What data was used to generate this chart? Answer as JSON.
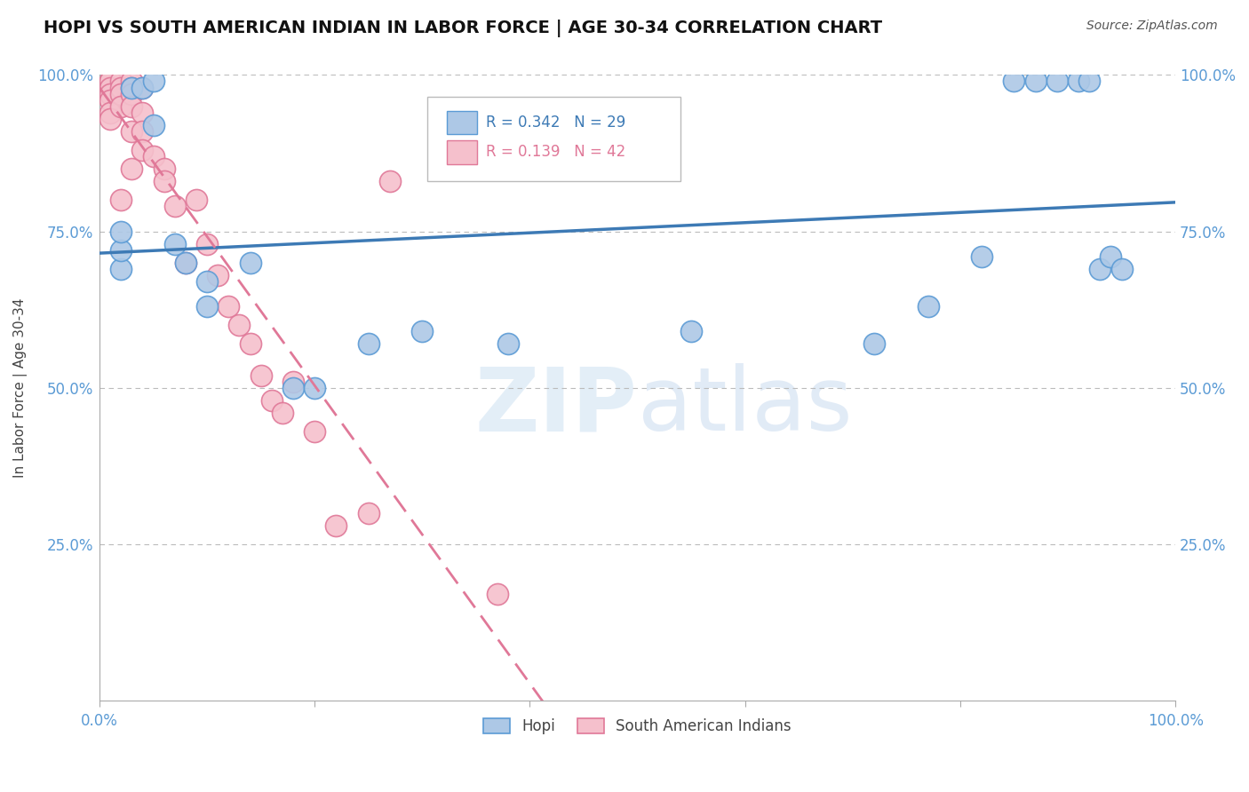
{
  "title": "HOPI VS SOUTH AMERICAN INDIAN IN LABOR FORCE | AGE 30-34 CORRELATION CHART",
  "source": "Source: ZipAtlas.com",
  "ylabel": "In Labor Force | Age 30-34",
  "watermark_top": "ZIP",
  "watermark_bot": "atlas",
  "blue_R": 0.342,
  "blue_N": 29,
  "pink_R": 0.139,
  "pink_N": 42,
  "xlim": [
    0.0,
    1.0
  ],
  "ylim": [
    0.0,
    1.0
  ],
  "blue_scatter_x": [
    0.02,
    0.02,
    0.02,
    0.03,
    0.04,
    0.05,
    0.05,
    0.07,
    0.08,
    0.1,
    0.1,
    0.14,
    0.18,
    0.2,
    0.25,
    0.3,
    0.38,
    0.55,
    0.72,
    0.77,
    0.82,
    0.85,
    0.87,
    0.89,
    0.91,
    0.92,
    0.93,
    0.94,
    0.95
  ],
  "blue_scatter_y": [
    0.69,
    0.72,
    0.75,
    0.98,
    0.98,
    0.99,
    0.92,
    0.73,
    0.7,
    0.67,
    0.63,
    0.7,
    0.5,
    0.5,
    0.57,
    0.59,
    0.57,
    0.59,
    0.57,
    0.63,
    0.71,
    0.99,
    0.99,
    0.99,
    0.99,
    0.99,
    0.69,
    0.71,
    0.69
  ],
  "pink_scatter_x": [
    0.01,
    0.01,
    0.01,
    0.01,
    0.01,
    0.01,
    0.01,
    0.02,
    0.02,
    0.02,
    0.02,
    0.02,
    0.03,
    0.03,
    0.03,
    0.03,
    0.03,
    0.03,
    0.04,
    0.04,
    0.04,
    0.04,
    0.05,
    0.06,
    0.06,
    0.07,
    0.08,
    0.09,
    0.1,
    0.11,
    0.12,
    0.13,
    0.14,
    0.15,
    0.16,
    0.17,
    0.18,
    0.2,
    0.22,
    0.25,
    0.27,
    0.37
  ],
  "pink_scatter_y": [
    0.99,
    0.99,
    0.98,
    0.97,
    0.96,
    0.94,
    0.93,
    0.99,
    0.98,
    0.97,
    0.95,
    0.8,
    0.99,
    0.98,
    0.97,
    0.95,
    0.91,
    0.85,
    0.98,
    0.94,
    0.91,
    0.88,
    0.87,
    0.85,
    0.83,
    0.79,
    0.7,
    0.8,
    0.73,
    0.68,
    0.63,
    0.6,
    0.57,
    0.52,
    0.48,
    0.46,
    0.51,
    0.43,
    0.28,
    0.3,
    0.83,
    0.17
  ],
  "blue_color": "#adc8e6",
  "blue_edge_color": "#5b9bd5",
  "pink_color": "#f5c0cc",
  "pink_edge_color": "#e07898",
  "blue_line_color": "#3d7ab5",
  "pink_line_color": "#e07898",
  "grid_color": "#bbbbbb",
  "tick_color": "#5b9bd5",
  "title_fontsize": 14,
  "label_fontsize": 11,
  "tick_fontsize": 12
}
